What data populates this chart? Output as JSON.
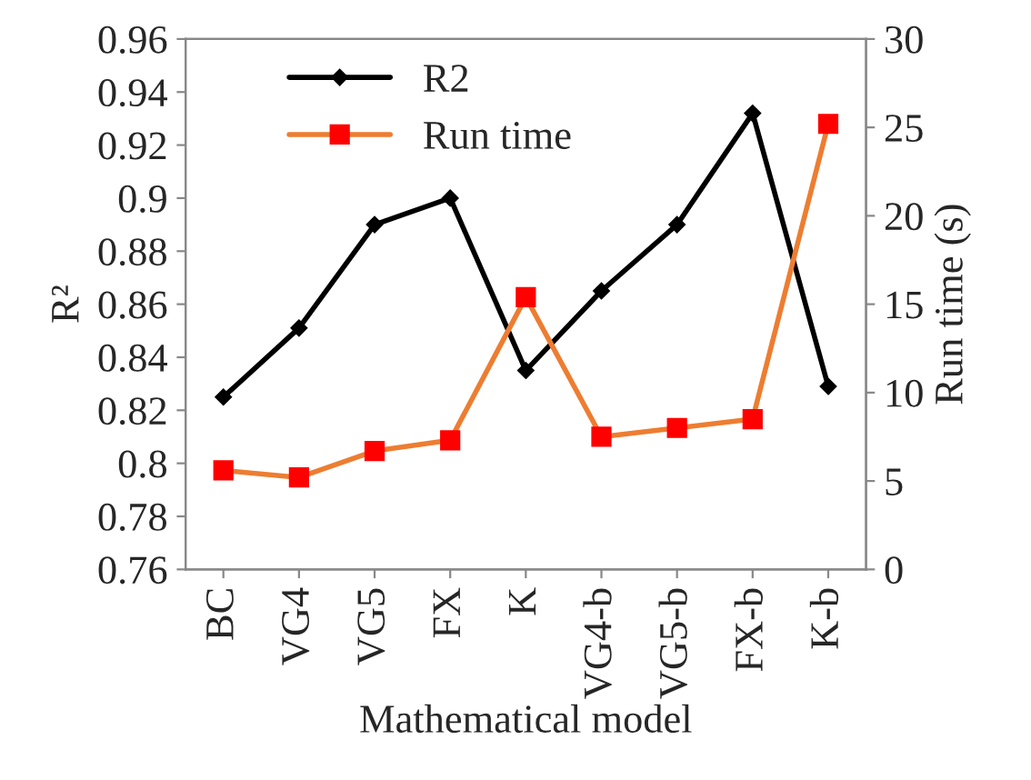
{
  "chart_data": {
    "type": "line",
    "xlabel": "Mathematical model",
    "ylabel": "R²",
    "y2label": "Run time (s)",
    "categories": [
      "BC",
      "VG4",
      "VG5",
      "FX",
      "K",
      "VG4-b",
      "VG5-b",
      "FX-b",
      "K-b"
    ],
    "series": [
      {
        "name": "R2",
        "color": "#000000",
        "marker": "diamond",
        "values": [
          0.825,
          0.851,
          0.89,
          0.9,
          0.835,
          0.865,
          0.89,
          0.932,
          0.829
        ]
      },
      {
        "name": "Run time",
        "color": "#ed7d31",
        "marker": "square",
        "colors": [
          "#ff0000",
          "#ff0000",
          "#ff0000",
          "#ff0000",
          "#ff0000",
          "#ff0000",
          "#ff0000",
          "#ff0000",
          "#ff0000"
        ],
        "axis": "y2",
        "values": [
          5.6,
          5.2,
          6.7,
          7.3,
          15.4,
          7.5,
          8.0,
          8.5,
          25.2
        ]
      }
    ],
    "ylim": [
      0.76,
      0.96
    ],
    "yticks": [
      0.76,
      0.78,
      0.8,
      0.82,
      0.84,
      0.86,
      0.88,
      0.9,
      0.92,
      0.94,
      0.96
    ],
    "y2lim": [
      0,
      30
    ],
    "y2ticks": [
      0,
      5,
      10,
      15,
      20,
      25,
      30
    ],
    "legend": "top",
    "grid": false
  }
}
